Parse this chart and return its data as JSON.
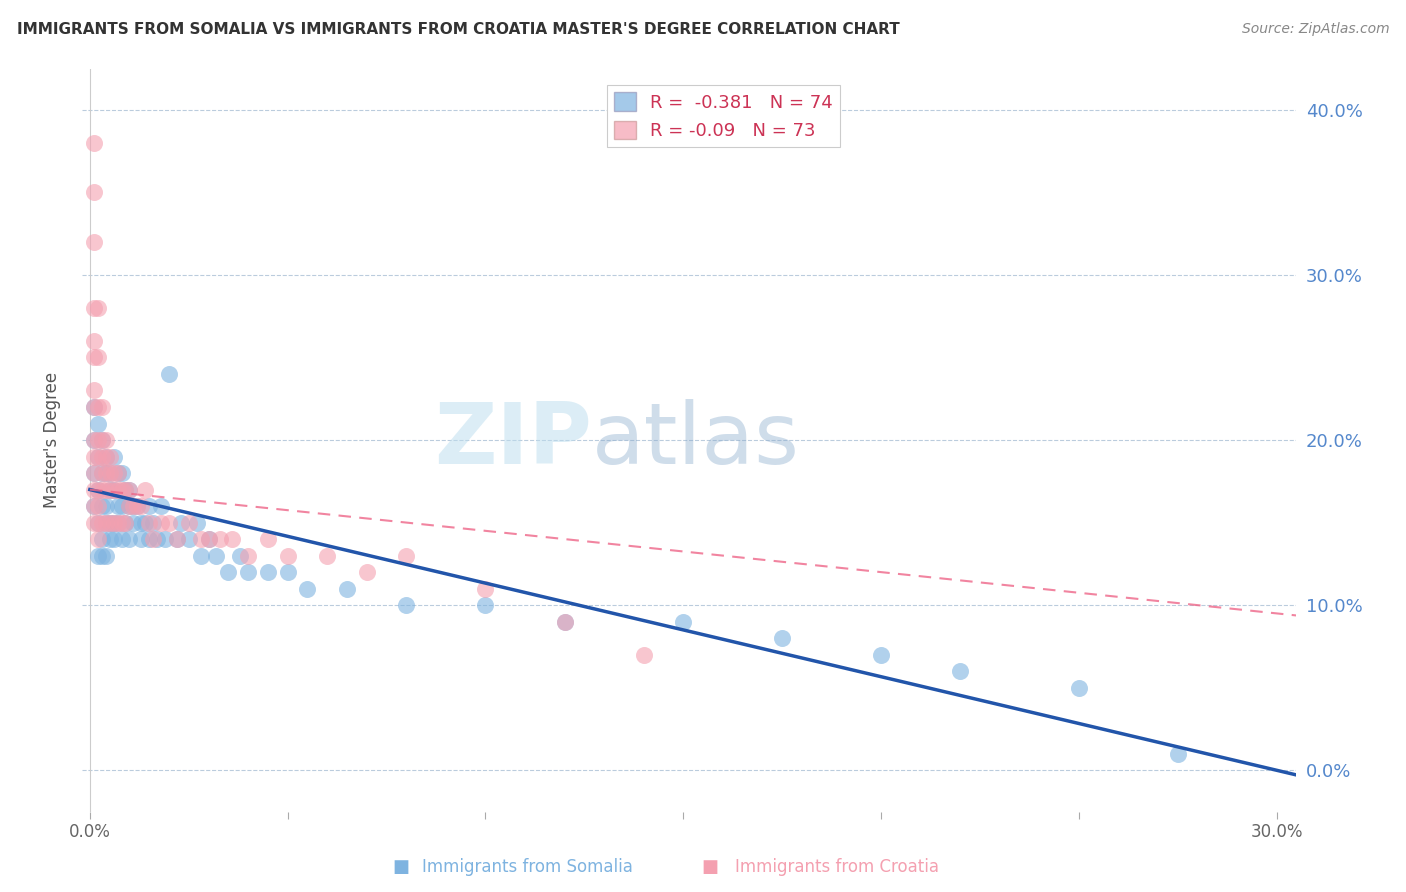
{
  "title": "IMMIGRANTS FROM SOMALIA VS IMMIGRANTS FROM CROATIA MASTER'S DEGREE CORRELATION CHART",
  "source": "Source: ZipAtlas.com",
  "ylabel": "Master's Degree",
  "xlabel_somalia": "Immigrants from Somalia",
  "xlabel_croatia": "Immigrants from Croatia",
  "xlim": [
    -0.002,
    0.305
  ],
  "ylim": [
    -0.025,
    0.425
  ],
  "xticks": [
    0.0,
    0.05,
    0.1,
    0.15,
    0.2,
    0.25,
    0.3
  ],
  "xtick_labels": [
    "0.0%",
    "",
    "",
    "",
    "",
    "",
    "30.0%"
  ],
  "yticks": [
    0.0,
    0.1,
    0.2,
    0.3,
    0.4
  ],
  "ytick_labels_right": [
    "0.0%",
    "10.0%",
    "20.0%",
    "30.0%",
    "40.0%"
  ],
  "color_somalia": "#7EB3E0",
  "color_croatia": "#F4A0B0",
  "line_color_somalia": "#2255AA",
  "line_color_croatia": "#EE6688",
  "R_somalia": -0.381,
  "N_somalia": 74,
  "R_croatia": -0.09,
  "N_croatia": 73,
  "watermark_zip": "ZIP",
  "watermark_atlas": "atlas",
  "background_color": "#FFFFFF",
  "somalia_x": [
    0.001,
    0.001,
    0.001,
    0.001,
    0.002,
    0.002,
    0.002,
    0.002,
    0.002,
    0.003,
    0.003,
    0.003,
    0.003,
    0.003,
    0.004,
    0.004,
    0.004,
    0.004,
    0.004,
    0.005,
    0.005,
    0.005,
    0.005,
    0.006,
    0.006,
    0.006,
    0.006,
    0.007,
    0.007,
    0.007,
    0.008,
    0.008,
    0.008,
    0.009,
    0.009,
    0.01,
    0.01,
    0.01,
    0.011,
    0.011,
    0.012,
    0.013,
    0.013,
    0.014,
    0.015,
    0.015,
    0.016,
    0.017,
    0.018,
    0.019,
    0.02,
    0.022,
    0.023,
    0.025,
    0.027,
    0.028,
    0.03,
    0.032,
    0.035,
    0.038,
    0.04,
    0.045,
    0.05,
    0.055,
    0.065,
    0.08,
    0.1,
    0.12,
    0.15,
    0.175,
    0.2,
    0.22,
    0.25,
    0.275
  ],
  "somalia_y": [
    0.22,
    0.2,
    0.18,
    0.16,
    0.21,
    0.19,
    0.17,
    0.15,
    0.13,
    0.2,
    0.18,
    0.16,
    0.14,
    0.13,
    0.19,
    0.18,
    0.16,
    0.15,
    0.13,
    0.18,
    0.17,
    0.15,
    0.14,
    0.19,
    0.17,
    0.15,
    0.14,
    0.18,
    0.16,
    0.15,
    0.18,
    0.16,
    0.14,
    0.17,
    0.15,
    0.17,
    0.16,
    0.14,
    0.16,
    0.15,
    0.16,
    0.15,
    0.14,
    0.15,
    0.16,
    0.14,
    0.15,
    0.14,
    0.16,
    0.14,
    0.24,
    0.14,
    0.15,
    0.14,
    0.15,
    0.13,
    0.14,
    0.13,
    0.12,
    0.13,
    0.12,
    0.12,
    0.12,
    0.11,
    0.11,
    0.1,
    0.1,
    0.09,
    0.09,
    0.08,
    0.07,
    0.06,
    0.05,
    0.01
  ],
  "croatia_x": [
    0.001,
    0.001,
    0.001,
    0.001,
    0.001,
    0.001,
    0.001,
    0.001,
    0.001,
    0.001,
    0.001,
    0.001,
    0.001,
    0.001,
    0.002,
    0.002,
    0.002,
    0.002,
    0.002,
    0.002,
    0.002,
    0.002,
    0.002,
    0.003,
    0.003,
    0.003,
    0.003,
    0.003,
    0.003,
    0.004,
    0.004,
    0.004,
    0.004,
    0.004,
    0.005,
    0.005,
    0.005,
    0.005,
    0.006,
    0.006,
    0.006,
    0.007,
    0.007,
    0.007,
    0.008,
    0.008,
    0.009,
    0.009,
    0.01,
    0.01,
    0.011,
    0.012,
    0.013,
    0.014,
    0.015,
    0.016,
    0.018,
    0.02,
    0.022,
    0.025,
    0.028,
    0.03,
    0.033,
    0.036,
    0.04,
    0.045,
    0.05,
    0.06,
    0.07,
    0.08,
    0.1,
    0.12,
    0.14
  ],
  "croatia_y": [
    0.38,
    0.35,
    0.32,
    0.28,
    0.26,
    0.25,
    0.23,
    0.22,
    0.2,
    0.19,
    0.18,
    0.17,
    0.16,
    0.15,
    0.28,
    0.25,
    0.22,
    0.2,
    0.19,
    0.17,
    0.16,
    0.15,
    0.14,
    0.22,
    0.2,
    0.19,
    0.18,
    0.17,
    0.15,
    0.2,
    0.19,
    0.18,
    0.17,
    0.15,
    0.19,
    0.18,
    0.17,
    0.15,
    0.18,
    0.17,
    0.15,
    0.18,
    0.17,
    0.15,
    0.17,
    0.15,
    0.17,
    0.15,
    0.17,
    0.16,
    0.16,
    0.16,
    0.16,
    0.17,
    0.15,
    0.14,
    0.15,
    0.15,
    0.14,
    0.15,
    0.14,
    0.14,
    0.14,
    0.14,
    0.13,
    0.14,
    0.13,
    0.13,
    0.12,
    0.13,
    0.11,
    0.09,
    0.07
  ]
}
